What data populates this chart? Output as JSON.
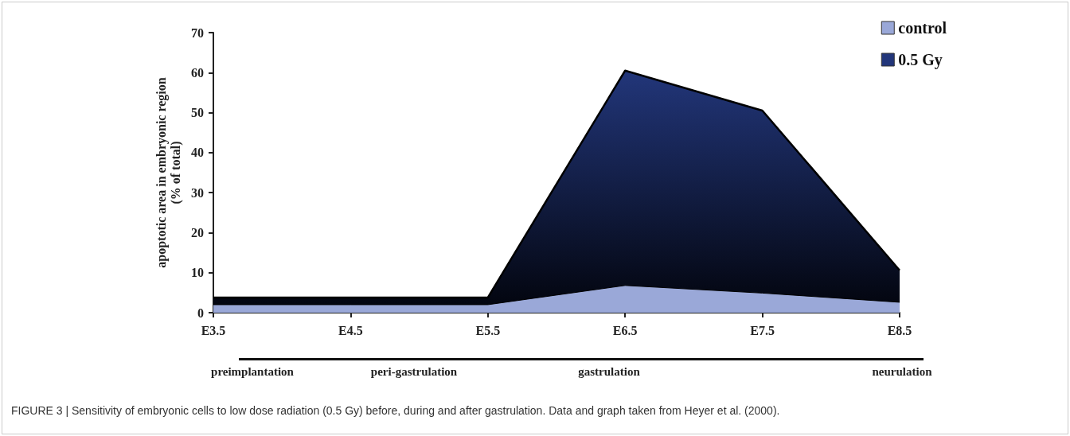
{
  "chart_data": {
    "type": "area",
    "ylabel": "apoptotic area in embryonic region\n(% of total)",
    "categories": [
      "E3.5",
      "E4.5",
      "E5.5",
      "E6.5",
      "E7.5",
      "E8.5"
    ],
    "series": [
      {
        "name": "control",
        "color": "#9aa8d8",
        "values": [
          2,
          2,
          2,
          6.8,
          4.9,
          2.6
        ]
      },
      {
        "name": "0.5 Gy",
        "color": "#22367a",
        "values": [
          3.8,
          3.8,
          3.8,
          60.5,
          50.5,
          10.6
        ]
      }
    ],
    "ylim": [
      0,
      70
    ],
    "yticks": [
      0,
      10,
      20,
      30,
      40,
      50,
      60,
      70
    ],
    "grid": false,
    "legend": "top right",
    "annotations": [
      "preimplantation",
      "peri-gastrulation",
      "gastrulation",
      "neurulation",
      "FIGURE 3 | Sensitivity of embryonic cells to low dose radiation (0.5 Gy) before, during and after gastrulation. Data and graph taken from Heyer et al. (2000)."
    ]
  }
}
